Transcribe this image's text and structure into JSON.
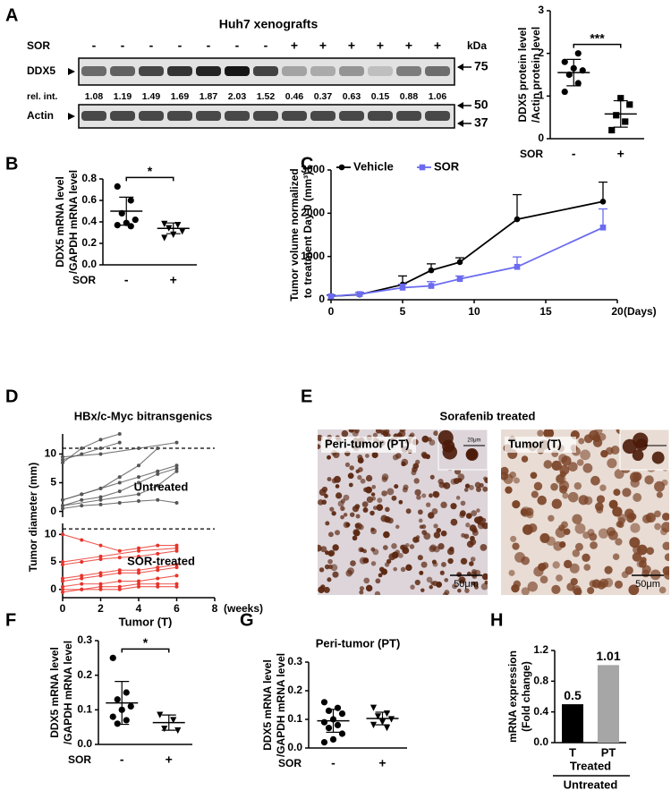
{
  "panel_labels": [
    "A",
    "B",
    "C",
    "D",
    "E",
    "F",
    "G",
    "H"
  ],
  "blot": {
    "title": "Huh7 xenografts",
    "treatment_label": "SOR",
    "lanes": [
      "-",
      "-",
      "-",
      "-",
      "-",
      "-",
      "-",
      "+",
      "+",
      "+",
      "+",
      "+",
      "+"
    ],
    "kda_label": "kDa",
    "ddx5_label": "DDX5",
    "rel_int_label": "rel. int.",
    "rel_int": [
      1.08,
      1.19,
      1.49,
      1.69,
      1.87,
      2.03,
      1.52,
      0.46,
      0.37,
      0.63,
      0.15,
      0.88,
      1.06
    ],
    "actin_label": "Actin",
    "markers": [
      75,
      50,
      37
    ]
  },
  "chart_data": [
    {
      "type": "dot_plot",
      "ylabel": [
        "DDX5 protein level",
        "/Actin protein level"
      ],
      "xlabel": "SOR",
      "categories": [
        "-",
        "+"
      ],
      "ylim": [
        0,
        3
      ],
      "yticks": [
        0,
        1,
        2,
        3
      ],
      "significance": "***",
      "groups": [
        {
          "marker": "circle",
          "values": [
            1.1,
            1.3,
            1.5,
            1.6,
            1.65,
            1.8,
            2.0
          ],
          "mean": 1.55,
          "sd": 0.31
        },
        {
          "marker": "square",
          "values": [
            0.2,
            0.4,
            0.55,
            0.8,
            0.95
          ],
          "mean": 0.58,
          "sd": 0.31
        }
      ]
    },
    {
      "type": "dot_plot",
      "ylabel": [
        "DDX5 mRNA level",
        "/GAPDH mRNA level"
      ],
      "xlabel": "SOR",
      "categories": [
        "-",
        "+"
      ],
      "ylim": [
        0,
        0.8
      ],
      "yticks": [
        {
          "value": 0,
          "label": "0.0"
        },
        0.2,
        0.4,
        0.6,
        0.8
      ],
      "significance": "*",
      "groups": [
        {
          "marker": "circle",
          "values": [
            0.73,
            0.6,
            0.48,
            0.42,
            0.39,
            0.37,
            0.36
          ],
          "mean": 0.5,
          "sd": 0.13
        },
        {
          "marker": "triangle",
          "values": [
            0.38,
            0.37,
            0.34,
            0.31,
            0.28,
            0.25
          ],
          "mean": 0.34,
          "sd": 0.05
        }
      ]
    },
    {
      "type": "line",
      "ylabel": [
        "Tumor volume normalized",
        "to treatment Day 0 (mm³)"
      ],
      "xlabel": "(Days)",
      "xlim": [
        0,
        20
      ],
      "xticks": [
        0,
        5,
        10,
        15,
        20
      ],
      "ylim": [
        0,
        3000
      ],
      "yticks": [
        0,
        1000,
        2000,
        3000
      ],
      "legend": "upper left",
      "series": [
        {
          "name": "Vehicle",
          "color": "#000000",
          "x": [
            0,
            2,
            5,
            7,
            9,
            13,
            19
          ],
          "values": [
            80,
            120,
            350,
            680,
            870,
            1860,
            2270
          ],
          "errors": [
            30,
            50,
            200,
            150,
            100,
            570,
            450
          ]
        },
        {
          "name": "SOR",
          "color": "#6b6bf0",
          "x": [
            0,
            2,
            5,
            7,
            9,
            13,
            19
          ],
          "values": [
            80,
            130,
            280,
            320,
            480,
            760,
            1670
          ],
          "errors": [
            20,
            40,
            80,
            100,
            70,
            230,
            430
          ]
        }
      ]
    },
    {
      "type": "spaghetti",
      "title": "HBx/c-Myc bitransgenics",
      "ylabel": "Tumor diameter (mm)",
      "xlabel": "(weeks)",
      "xlim": [
        0,
        8
      ],
      "xticks": [
        0,
        2,
        4,
        6,
        8
      ],
      "threshold": 11,
      "panels": [
        {
          "label": "Untreated",
          "color": "#555555",
          "ylim": [
            -1,
            13.5
          ],
          "yticks": [
            0,
            5,
            10
          ],
          "series": [
            {
              "x": [
                0,
                1,
                2,
                3
              ],
              "values": [
                8.5,
                11,
                12.5,
                13.5
              ]
            },
            {
              "x": [
                0,
                1,
                2,
                3
              ],
              "values": [
                9,
                10,
                11,
                12
              ]
            },
            {
              "x": [
                0,
                2,
                4,
                6
              ],
              "values": [
                9.5,
                10,
                11,
                12
              ]
            },
            {
              "x": [
                0,
                1,
                2,
                3,
                4,
                5,
                6
              ],
              "values": [
                2,
                3,
                4,
                5,
                6,
                7,
                8
              ]
            },
            {
              "x": [
                0,
                1,
                2,
                3,
                4,
                5,
                6
              ],
              "values": [
                1,
                2,
                2.5,
                3.5,
                5,
                6.5,
                7.5
              ]
            },
            {
              "x": [
                0,
                2,
                4,
                5,
                6
              ],
              "values": [
                1,
                2,
                3,
                4.5,
                7
              ]
            },
            {
              "x": [
                0,
                1,
                2,
                3,
                4,
                5,
                6
              ],
              "values": [
                0.5,
                1,
                1.2,
                1.5,
                1.8,
                2,
                1.5
              ]
            },
            {
              "x": [
                0,
                1,
                2,
                3,
                4,
                5
              ],
              "values": [
                2,
                3,
                4,
                6,
                8,
                11
              ]
            }
          ]
        },
        {
          "label": "SOR-treated",
          "color": "#e8332a",
          "ylim": [
            -1.5,
            12
          ],
          "yticks": [
            0,
            5,
            10
          ],
          "series": [
            {
              "x": [
                0,
                1,
                2,
                3,
                4,
                5,
                6
              ],
              "values": [
                10,
                9,
                8,
                7,
                7.5,
                8,
                8
              ]
            },
            {
              "x": [
                0,
                2,
                4,
                6
              ],
              "values": [
                5,
                6,
                7,
                7.5
              ]
            },
            {
              "x": [
                0,
                1,
                2,
                3,
                4,
                5,
                6
              ],
              "values": [
                4.5,
                5,
                5.5,
                5.8,
                6,
                6.5,
                7
              ]
            },
            {
              "x": [
                0,
                1,
                2,
                3,
                4,
                5,
                6
              ],
              "values": [
                2,
                2.5,
                3,
                3.5,
                3.5,
                4,
                4.5
              ]
            },
            {
              "x": [
                0,
                1,
                2,
                3,
                4,
                5,
                6
              ],
              "values": [
                1.5,
                2,
                2.5,
                3,
                3,
                3.5,
                4
              ]
            },
            {
              "x": [
                0,
                1,
                2,
                3,
                4,
                5,
                6
              ],
              "values": [
                0.5,
                1,
                1,
                1.5,
                1.5,
                2,
                2.5
              ]
            },
            {
              "x": [
                0,
                1,
                2,
                3,
                4,
                5,
                6
              ],
              "values": [
                0,
                0,
                0.5,
                0.5,
                1,
                1,
                1
              ]
            },
            {
              "x": [
                0,
                1,
                2,
                3,
                4,
                5,
                6
              ],
              "values": [
                -0.5,
                0,
                0,
                0,
                0.5,
                0.5,
                0.5
              ]
            }
          ]
        }
      ]
    },
    {
      "type": "dot_plot",
      "title": "Tumor (T)",
      "ylabel": [
        "DDX5 mRNA level",
        "/GAPDH mRNA level"
      ],
      "xlabel": "SOR",
      "categories": [
        "-",
        "+"
      ],
      "ylim": [
        0,
        0.3
      ],
      "yticks": [
        {
          "value": 0,
          "label": "0.0"
        },
        0.1,
        0.2,
        0.3
      ],
      "significance": "*",
      "groups": [
        {
          "marker": "circle",
          "values": [
            0.25,
            0.15,
            0.13,
            0.11,
            0.1,
            0.08,
            0.07,
            0.06
          ],
          "mean": 0.12,
          "sd": 0.062
        },
        {
          "marker": "triangle",
          "values": [
            0.085,
            0.07,
            0.045,
            0.04
          ],
          "mean": 0.063,
          "sd": 0.022
        }
      ]
    },
    {
      "type": "dot_plot",
      "title": "Peri-tumor (PT)",
      "ylabel": [
        "DDX5 mRNA level",
        "/GAPDH mRNA level"
      ],
      "xlabel": "SOR",
      "categories": [
        "-",
        "+"
      ],
      "ylim": [
        0,
        0.3
      ],
      "yticks": [
        {
          "value": 0,
          "label": "0.0"
        },
        0.1,
        0.2,
        0.3
      ],
      "groups": [
        {
          "marker": "circle",
          "values": [
            0.16,
            0.14,
            0.13,
            0.12,
            0.1,
            0.09,
            0.08,
            0.07,
            0.05,
            0.03,
            0.02
          ],
          "mean": 0.095,
          "sd": 0.04
        },
        {
          "marker": "triangle",
          "values": [
            0.14,
            0.12,
            0.11,
            0.1,
            0.09,
            0.08,
            0.07
          ],
          "mean": 0.103,
          "sd": 0.022
        }
      ]
    },
    {
      "type": "bar",
      "ylabel": [
        "mRNA expression",
        "(Fold change)"
      ],
      "categories": [
        "T",
        "PT"
      ],
      "values": [
        0.5,
        1.01
      ],
      "colors": [
        "#000000",
        "#a6a6a6"
      ],
      "ylim": [
        0,
        1.2
      ],
      "yticks": [
        {
          "value": 0,
          "label": "0.0"
        },
        0.4,
        0.8,
        1.2
      ],
      "numerator": "Treated",
      "denominator": "Untreated"
    }
  ],
  "images": {
    "title": "Sorafenib treated",
    "items": [
      {
        "label": "Peri-tumor (PT)",
        "scale_bar": "50μm",
        "inset_scale_bar": "20μm"
      },
      {
        "label": "Tumor (T)",
        "scale_bar": "50μm"
      }
    ]
  }
}
